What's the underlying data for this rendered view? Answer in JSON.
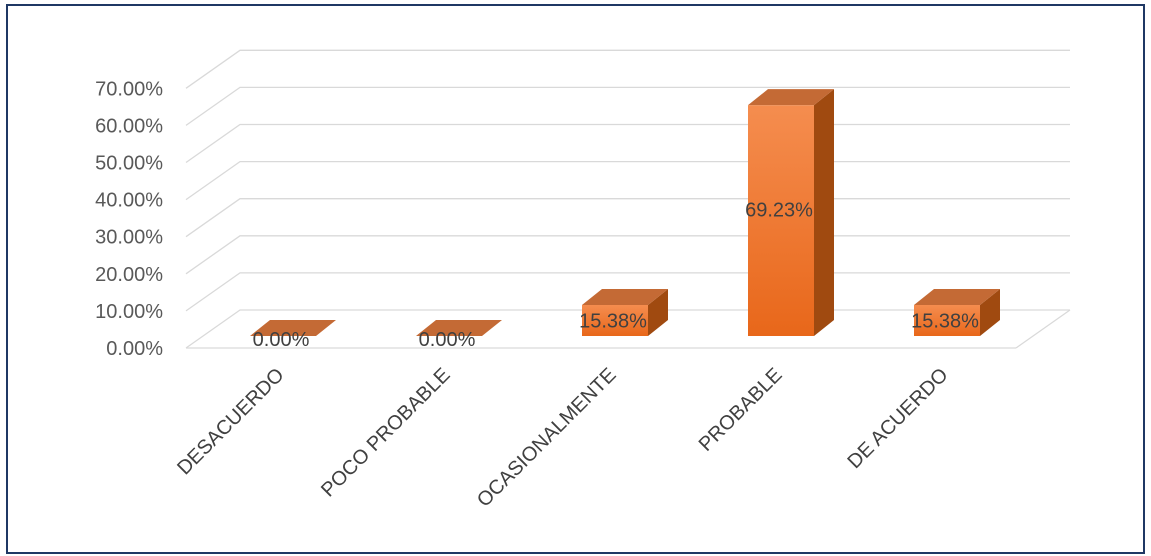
{
  "chart_data": {
    "type": "bar",
    "style": "3d-column",
    "categories": [
      "DESACUERDO",
      "POCO PROBABLE",
      "OCASIONALMENTE",
      "PROBABLE",
      "DE ACUERDO"
    ],
    "values": [
      0.0,
      0.0,
      15.38,
      69.23,
      15.38
    ],
    "data_labels": [
      "0.00%",
      "0.00%",
      "15.38%",
      "69.23%",
      "15.38%"
    ],
    "y_ticks": [
      "0.00%",
      "10.00%",
      "20.00%",
      "30.00%",
      "40.00%",
      "50.00%",
      "60.00%",
      "70.00%"
    ],
    "ylim": [
      0,
      70
    ],
    "grid": true,
    "legend": "none",
    "colors": {
      "front_top": "#f58d4f",
      "front_bottom": "#e8671a",
      "side": "#a04a10",
      "top": "#c46a35",
      "grid": "#d9d9d9",
      "border": "#1f3864"
    }
  }
}
